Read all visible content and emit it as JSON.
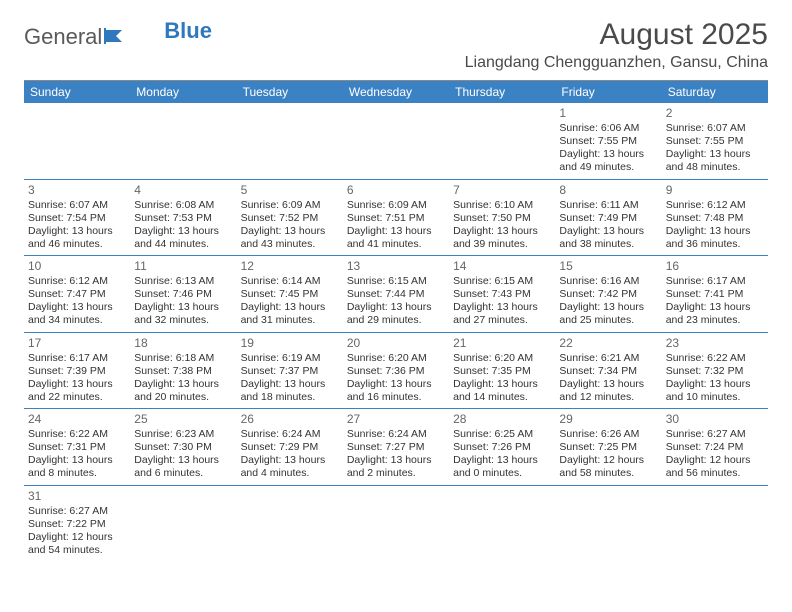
{
  "logo": {
    "part1": "General",
    "part2": "Blue"
  },
  "title": "August 2025",
  "location": "Liangdang Chengguanzhen, Gansu, China",
  "colors": {
    "header_bg": "#3b82c4",
    "header_text": "#ffffff",
    "row_border": "#3b82c4",
    "text": "#333333",
    "muted": "#666666",
    "top_rule": "#888888"
  },
  "weekdays": [
    "Sunday",
    "Monday",
    "Tuesday",
    "Wednesday",
    "Thursday",
    "Friday",
    "Saturday"
  ],
  "weeks": [
    [
      null,
      null,
      null,
      null,
      null,
      {
        "n": "1",
        "sunrise": "Sunrise: 6:06 AM",
        "sunset": "Sunset: 7:55 PM",
        "day1": "Daylight: 13 hours",
        "day2": "and 49 minutes."
      },
      {
        "n": "2",
        "sunrise": "Sunrise: 6:07 AM",
        "sunset": "Sunset: 7:55 PM",
        "day1": "Daylight: 13 hours",
        "day2": "and 48 minutes."
      }
    ],
    [
      {
        "n": "3",
        "sunrise": "Sunrise: 6:07 AM",
        "sunset": "Sunset: 7:54 PM",
        "day1": "Daylight: 13 hours",
        "day2": "and 46 minutes."
      },
      {
        "n": "4",
        "sunrise": "Sunrise: 6:08 AM",
        "sunset": "Sunset: 7:53 PM",
        "day1": "Daylight: 13 hours",
        "day2": "and 44 minutes."
      },
      {
        "n": "5",
        "sunrise": "Sunrise: 6:09 AM",
        "sunset": "Sunset: 7:52 PM",
        "day1": "Daylight: 13 hours",
        "day2": "and 43 minutes."
      },
      {
        "n": "6",
        "sunrise": "Sunrise: 6:09 AM",
        "sunset": "Sunset: 7:51 PM",
        "day1": "Daylight: 13 hours",
        "day2": "and 41 minutes."
      },
      {
        "n": "7",
        "sunrise": "Sunrise: 6:10 AM",
        "sunset": "Sunset: 7:50 PM",
        "day1": "Daylight: 13 hours",
        "day2": "and 39 minutes."
      },
      {
        "n": "8",
        "sunrise": "Sunrise: 6:11 AM",
        "sunset": "Sunset: 7:49 PM",
        "day1": "Daylight: 13 hours",
        "day2": "and 38 minutes."
      },
      {
        "n": "9",
        "sunrise": "Sunrise: 6:12 AM",
        "sunset": "Sunset: 7:48 PM",
        "day1": "Daylight: 13 hours",
        "day2": "and 36 minutes."
      }
    ],
    [
      {
        "n": "10",
        "sunrise": "Sunrise: 6:12 AM",
        "sunset": "Sunset: 7:47 PM",
        "day1": "Daylight: 13 hours",
        "day2": "and 34 minutes."
      },
      {
        "n": "11",
        "sunrise": "Sunrise: 6:13 AM",
        "sunset": "Sunset: 7:46 PM",
        "day1": "Daylight: 13 hours",
        "day2": "and 32 minutes."
      },
      {
        "n": "12",
        "sunrise": "Sunrise: 6:14 AM",
        "sunset": "Sunset: 7:45 PM",
        "day1": "Daylight: 13 hours",
        "day2": "and 31 minutes."
      },
      {
        "n": "13",
        "sunrise": "Sunrise: 6:15 AM",
        "sunset": "Sunset: 7:44 PM",
        "day1": "Daylight: 13 hours",
        "day2": "and 29 minutes."
      },
      {
        "n": "14",
        "sunrise": "Sunrise: 6:15 AM",
        "sunset": "Sunset: 7:43 PM",
        "day1": "Daylight: 13 hours",
        "day2": "and 27 minutes."
      },
      {
        "n": "15",
        "sunrise": "Sunrise: 6:16 AM",
        "sunset": "Sunset: 7:42 PM",
        "day1": "Daylight: 13 hours",
        "day2": "and 25 minutes."
      },
      {
        "n": "16",
        "sunrise": "Sunrise: 6:17 AM",
        "sunset": "Sunset: 7:41 PM",
        "day1": "Daylight: 13 hours",
        "day2": "and 23 minutes."
      }
    ],
    [
      {
        "n": "17",
        "sunrise": "Sunrise: 6:17 AM",
        "sunset": "Sunset: 7:39 PM",
        "day1": "Daylight: 13 hours",
        "day2": "and 22 minutes."
      },
      {
        "n": "18",
        "sunrise": "Sunrise: 6:18 AM",
        "sunset": "Sunset: 7:38 PM",
        "day1": "Daylight: 13 hours",
        "day2": "and 20 minutes."
      },
      {
        "n": "19",
        "sunrise": "Sunrise: 6:19 AM",
        "sunset": "Sunset: 7:37 PM",
        "day1": "Daylight: 13 hours",
        "day2": "and 18 minutes."
      },
      {
        "n": "20",
        "sunrise": "Sunrise: 6:20 AM",
        "sunset": "Sunset: 7:36 PM",
        "day1": "Daylight: 13 hours",
        "day2": "and 16 minutes."
      },
      {
        "n": "21",
        "sunrise": "Sunrise: 6:20 AM",
        "sunset": "Sunset: 7:35 PM",
        "day1": "Daylight: 13 hours",
        "day2": "and 14 minutes."
      },
      {
        "n": "22",
        "sunrise": "Sunrise: 6:21 AM",
        "sunset": "Sunset: 7:34 PM",
        "day1": "Daylight: 13 hours",
        "day2": "and 12 minutes."
      },
      {
        "n": "23",
        "sunrise": "Sunrise: 6:22 AM",
        "sunset": "Sunset: 7:32 PM",
        "day1": "Daylight: 13 hours",
        "day2": "and 10 minutes."
      }
    ],
    [
      {
        "n": "24",
        "sunrise": "Sunrise: 6:22 AM",
        "sunset": "Sunset: 7:31 PM",
        "day1": "Daylight: 13 hours",
        "day2": "and 8 minutes."
      },
      {
        "n": "25",
        "sunrise": "Sunrise: 6:23 AM",
        "sunset": "Sunset: 7:30 PM",
        "day1": "Daylight: 13 hours",
        "day2": "and 6 minutes."
      },
      {
        "n": "26",
        "sunrise": "Sunrise: 6:24 AM",
        "sunset": "Sunset: 7:29 PM",
        "day1": "Daylight: 13 hours",
        "day2": "and 4 minutes."
      },
      {
        "n": "27",
        "sunrise": "Sunrise: 6:24 AM",
        "sunset": "Sunset: 7:27 PM",
        "day1": "Daylight: 13 hours",
        "day2": "and 2 minutes."
      },
      {
        "n": "28",
        "sunrise": "Sunrise: 6:25 AM",
        "sunset": "Sunset: 7:26 PM",
        "day1": "Daylight: 13 hours",
        "day2": "and 0 minutes."
      },
      {
        "n": "29",
        "sunrise": "Sunrise: 6:26 AM",
        "sunset": "Sunset: 7:25 PM",
        "day1": "Daylight: 12 hours",
        "day2": "and 58 minutes."
      },
      {
        "n": "30",
        "sunrise": "Sunrise: 6:27 AM",
        "sunset": "Sunset: 7:24 PM",
        "day1": "Daylight: 12 hours",
        "day2": "and 56 minutes."
      }
    ],
    [
      {
        "n": "31",
        "sunrise": "Sunrise: 6:27 AM",
        "sunset": "Sunset: 7:22 PM",
        "day1": "Daylight: 12 hours",
        "day2": "and 54 minutes."
      },
      null,
      null,
      null,
      null,
      null,
      null
    ]
  ]
}
